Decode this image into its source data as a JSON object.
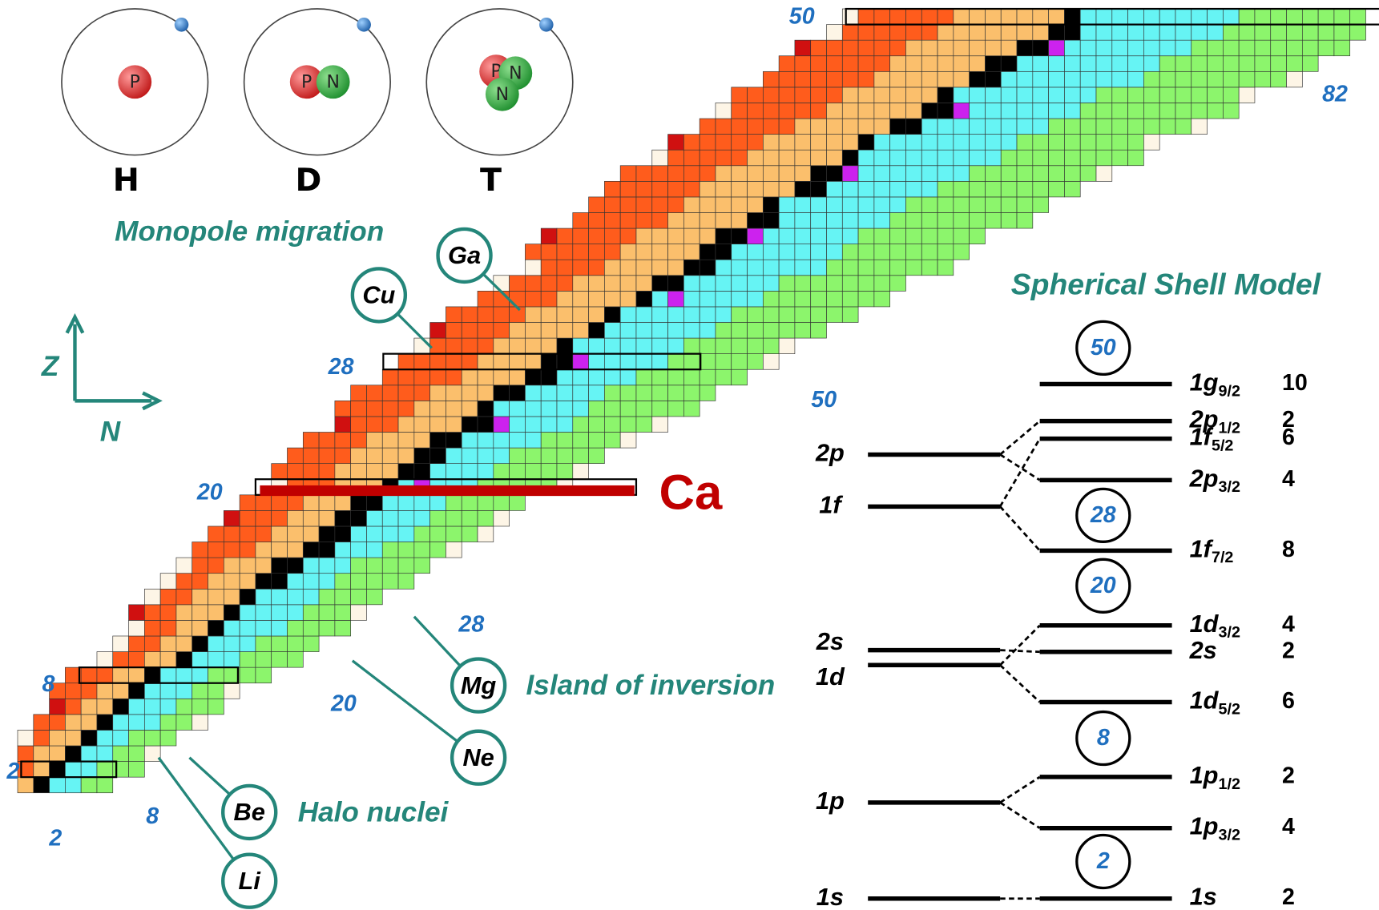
{
  "atoms": [
    {
      "label": "H",
      "nucleons": [
        "P"
      ]
    },
    {
      "label": "D",
      "nucleons": [
        "P",
        "N"
      ]
    },
    {
      "label": "T",
      "nucleons": [
        "P",
        "N",
        "N"
      ]
    }
  ],
  "nuclide_chart": {
    "caption": "Monopole migration",
    "axes": {
      "vertical": "Z",
      "horizontal": "N"
    },
    "magic_numbers": [
      50,
      82,
      28,
      50,
      20,
      28,
      8,
      20,
      2,
      8,
      2
    ],
    "highlight": "Ca",
    "regions": [
      "Island of inversion",
      "Halo nuclei"
    ],
    "elements": [
      "Cu",
      "Ga",
      "Mg",
      "Ne",
      "Be",
      "Li"
    ]
  },
  "shell_model": {
    "title": "Spherical Shell Model",
    "gaps": [
      50,
      28,
      20,
      8,
      2
    ],
    "left_levels": [
      "2p",
      "1f",
      "2s",
      "1d",
      "1p",
      "1s"
    ],
    "right_levels": [
      {
        "orbital": "1g",
        "j": "9/2",
        "occupancy": 10
      },
      {
        "orbital": "2p",
        "j": "1/2",
        "occupancy": 2
      },
      {
        "orbital": "1f",
        "j": "5/2",
        "occupancy": 6
      },
      {
        "orbital": "2p",
        "j": "3/2",
        "occupancy": 4
      },
      {
        "orbital": "1f",
        "j": "7/2",
        "occupancy": 8
      },
      {
        "orbital": "1d",
        "j": "3/2",
        "occupancy": 4
      },
      {
        "orbital": "2s",
        "occupancy": 2
      },
      {
        "orbital": "1d",
        "j": "5/2",
        "occupancy": 6
      },
      {
        "orbital": "1p",
        "j": "1/2",
        "occupancy": 2
      },
      {
        "orbital": "1p",
        "j": "3/2",
        "occupancy": 4
      },
      {
        "orbital": "1s",
        "occupancy": 2
      }
    ]
  }
}
